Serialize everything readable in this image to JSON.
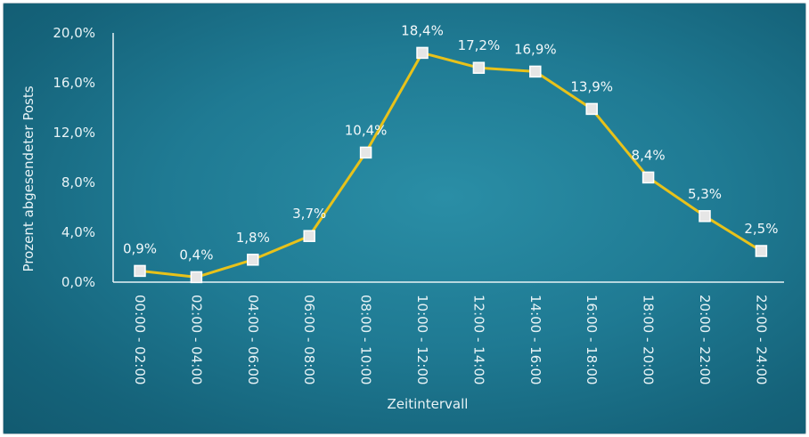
{
  "chart_data": {
    "type": "line",
    "title": "",
    "xlabel": "Zeitintervall",
    "ylabel": "Prozent abgesendeter Posts",
    "categories": [
      "00:00 - 02:00",
      "02:00 - 04:00",
      "04:00 - 06:00",
      "06:00 - 08:00",
      "08:00 - 10:00",
      "10:00 - 12:00",
      "12:00 - 14:00",
      "14:00 - 16:00",
      "16:00 - 18:00",
      "18:00 - 20:00",
      "20:00 - 22:00",
      "22:00 - 24:00"
    ],
    "series": [
      {
        "values": [
          0.9,
          0.4,
          1.8,
          3.7,
          10.4,
          18.4,
          17.2,
          16.9,
          13.9,
          8.4,
          5.3,
          2.5
        ],
        "labels": [
          "0,9%",
          "0,4%",
          "1,8%",
          "3,7%",
          "10,4%",
          "18,4%",
          "17,2%",
          "16,9%",
          "13,9%",
          "8,4%",
          "5,3%",
          "2,5%"
        ]
      }
    ],
    "ylim": [
      0,
      20
    ],
    "yticks": [
      0,
      4,
      8,
      12,
      16,
      20
    ],
    "ytick_labels": [
      "0,0%",
      "4,0%",
      "8,0%",
      "12,0%",
      "16,0%",
      "20,0%"
    ],
    "grid": false,
    "colors": {
      "line": "#e8c21a",
      "marker_fill": "#e6e6e6",
      "marker_stroke": "#ffffff",
      "axis": "#e8f3f6"
    }
  }
}
